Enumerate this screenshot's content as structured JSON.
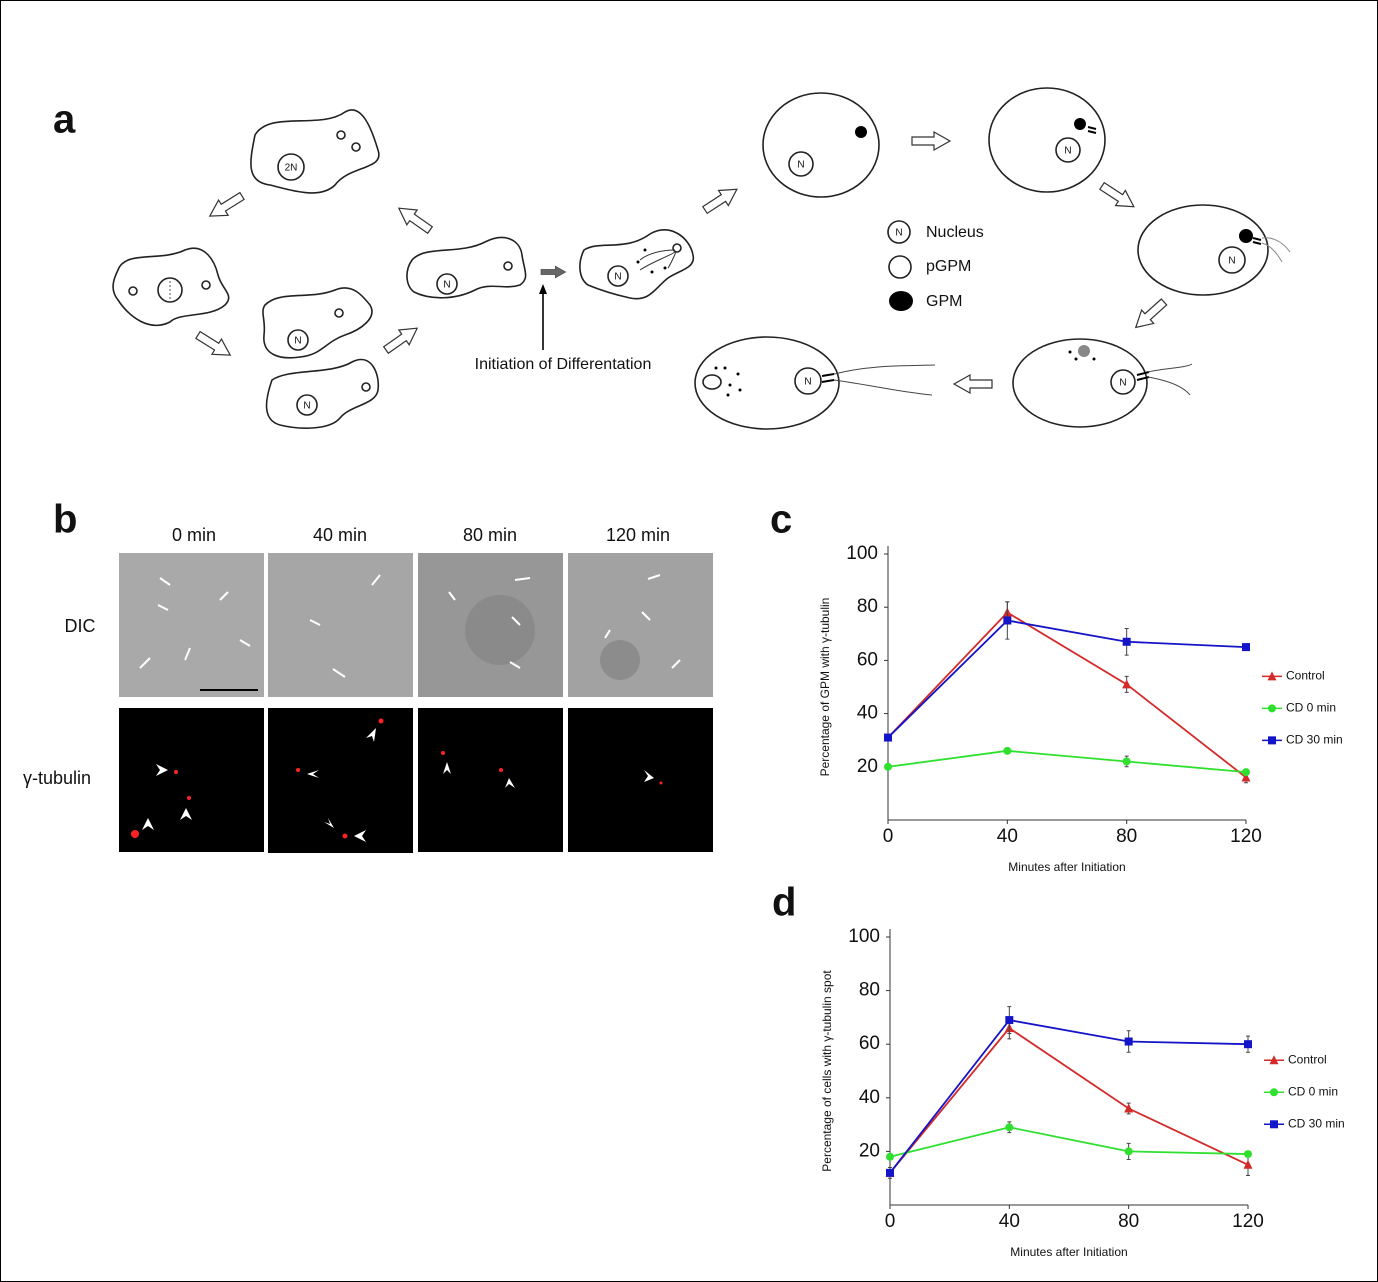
{
  "panel_labels": [
    "a",
    "b",
    "c",
    "d"
  ],
  "diagram": {
    "cell_labels": [
      "2N",
      "N",
      "N",
      "N",
      "N",
      "N",
      "N",
      "N",
      "N",
      "N"
    ],
    "legend_symbol": "N",
    "legend": [
      "Nucleus",
      "pGPM",
      "GPM"
    ],
    "annotation": "Initiation of Differentation"
  },
  "micrographs": {
    "times": [
      "0 min",
      "40 min",
      "80 min",
      "120 min"
    ],
    "rows": [
      "DIC",
      "γ-tubulin"
    ]
  },
  "chart_data": [
    {
      "type": "line",
      "x_label": "Minutes after Initiation",
      "y_label": "Percentage of GPM with γ-tubulin",
      "x": [
        0,
        40,
        80,
        120
      ],
      "xlim": [
        0,
        120
      ],
      "xticks": [
        0,
        40,
        80,
        120
      ],
      "ylim": [
        0,
        100
      ],
      "yticks": [
        20,
        40,
        60,
        80,
        100
      ],
      "legend": "right",
      "series": [
        {
          "name": "Control",
          "color": "#d42a2a",
          "marker": "triangle",
          "values": [
            31,
            78,
            51,
            16
          ],
          "errors": [
            1,
            4,
            3,
            2
          ]
        },
        {
          "name": "CD 0 min",
          "color": "#2fe02f",
          "marker": "circle",
          "values": [
            20,
            26,
            22,
            18
          ],
          "errors": [
            1,
            1,
            2,
            1
          ]
        },
        {
          "name": "CD 30 min",
          "color": "#1414c8",
          "marker": "square",
          "values": [
            31,
            75,
            67,
            65
          ],
          "errors": [
            1,
            7,
            5,
            1
          ]
        }
      ]
    },
    {
      "type": "line",
      "x_label": "Minutes after Initiation",
      "y_label": "Percentage of cells with γ-tubulin spot",
      "x": [
        0,
        40,
        80,
        120
      ],
      "xlim": [
        0,
        120
      ],
      "xticks": [
        0,
        40,
        80,
        120
      ],
      "ylim": [
        0,
        100
      ],
      "yticks": [
        20,
        40,
        60,
        80,
        100
      ],
      "legend": "right",
      "series": [
        {
          "name": "Control",
          "color": "#d42a2a",
          "marker": "triangle",
          "values": [
            12,
            66,
            36,
            15
          ],
          "errors": [
            1,
            4,
            2,
            4
          ]
        },
        {
          "name": "CD 0 min",
          "color": "#2fe02f",
          "marker": "circle",
          "values": [
            18,
            29,
            20,
            19
          ],
          "errors": [
            1,
            2,
            3,
            1
          ]
        },
        {
          "name": "CD 30 min",
          "color": "#1414c8",
          "marker": "square",
          "values": [
            12,
            69,
            61,
            60
          ],
          "errors": [
            2,
            5,
            4,
            3
          ]
        }
      ]
    }
  ]
}
